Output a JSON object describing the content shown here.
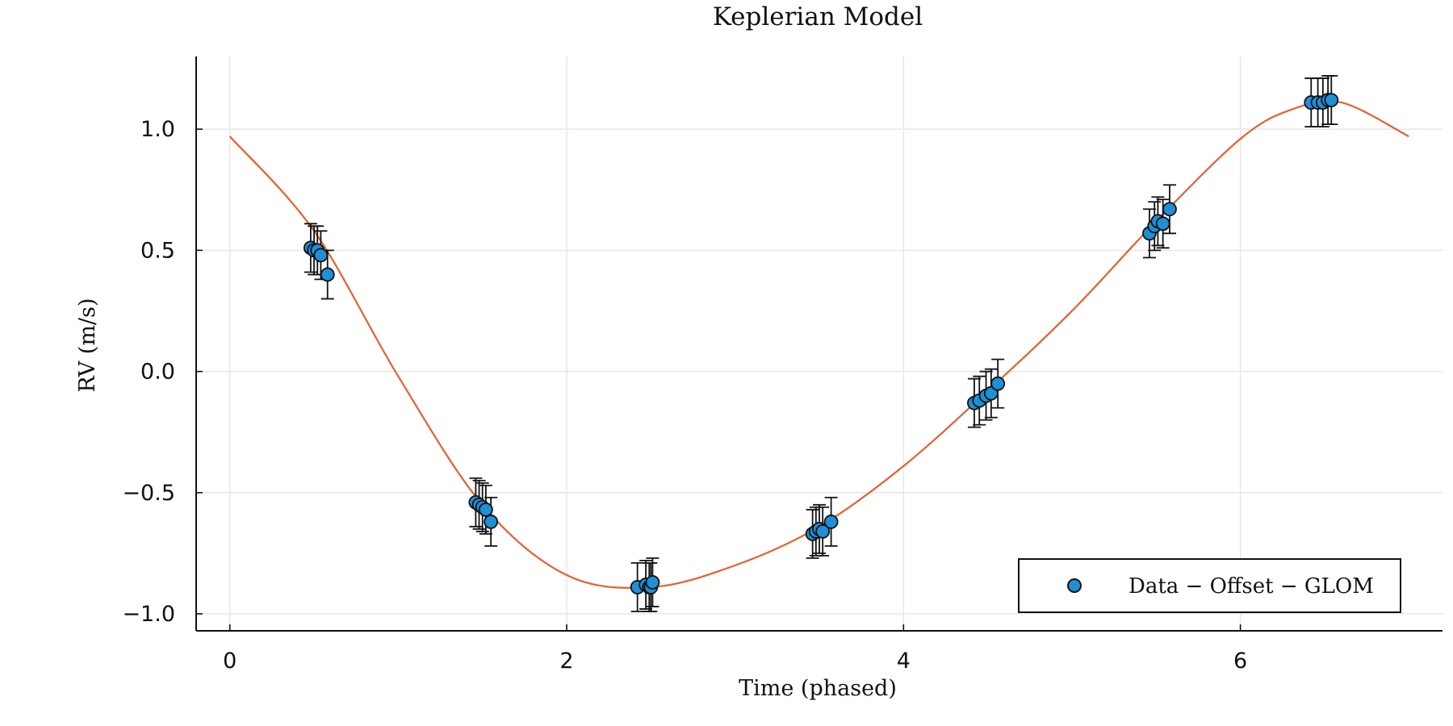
{
  "chart_data": {
    "type": "scatter",
    "title": "Keplerian Model",
    "xlabel": "Time (phased)",
    "ylabel": "RV (m/s)",
    "xlim": [
      -0.2,
      7.2
    ],
    "ylim": [
      -1.07,
      1.3
    ],
    "xticks": [
      0,
      2,
      4,
      6
    ],
    "yticks": [
      -1.0,
      -0.5,
      0.0,
      0.5,
      1.0
    ],
    "xtick_labels": [
      "0",
      "2",
      "4",
      "6"
    ],
    "ytick_labels": [
      "−1.0",
      "−0.5",
      "0.0",
      "0.5",
      "1.0"
    ],
    "grid": true,
    "legend_position": "bottom-right",
    "series": [
      {
        "name": "Data − Offset − GLOM",
        "kind": "scatter_with_error_bars",
        "color": "#1f8fd6",
        "error": 0.1,
        "points": [
          {
            "x": 0.48,
            "y": 0.51
          },
          {
            "x": 0.5,
            "y": 0.5
          },
          {
            "x": 0.52,
            "y": 0.5
          },
          {
            "x": 0.54,
            "y": 0.48
          },
          {
            "x": 0.58,
            "y": 0.4
          },
          {
            "x": 1.46,
            "y": -0.54
          },
          {
            "x": 1.48,
            "y": -0.55
          },
          {
            "x": 1.5,
            "y": -0.56
          },
          {
            "x": 1.52,
            "y": -0.57
          },
          {
            "x": 1.55,
            "y": -0.62
          },
          {
            "x": 2.42,
            "y": -0.89
          },
          {
            "x": 2.47,
            "y": -0.88
          },
          {
            "x": 2.49,
            "y": -0.89
          },
          {
            "x": 2.5,
            "y": -0.89
          },
          {
            "x": 2.51,
            "y": -0.87
          },
          {
            "x": 3.46,
            "y": -0.67
          },
          {
            "x": 3.48,
            "y": -0.66
          },
          {
            "x": 3.5,
            "y": -0.65
          },
          {
            "x": 3.52,
            "y": -0.66
          },
          {
            "x": 3.57,
            "y": -0.62
          },
          {
            "x": 4.42,
            "y": -0.13
          },
          {
            "x": 4.45,
            "y": -0.12
          },
          {
            "x": 4.49,
            "y": -0.1
          },
          {
            "x": 4.52,
            "y": -0.09
          },
          {
            "x": 4.56,
            "y": -0.05
          },
          {
            "x": 5.46,
            "y": 0.57
          },
          {
            "x": 5.49,
            "y": 0.6
          },
          {
            "x": 5.51,
            "y": 0.62
          },
          {
            "x": 5.54,
            "y": 0.61
          },
          {
            "x": 5.58,
            "y": 0.67
          },
          {
            "x": 6.42,
            "y": 1.11
          },
          {
            "x": 6.46,
            "y": 1.11
          },
          {
            "x": 6.49,
            "y": 1.11
          },
          {
            "x": 6.52,
            "y": 1.12
          },
          {
            "x": 6.54,
            "y": 1.12
          }
        ]
      },
      {
        "name": "",
        "kind": "line",
        "color": "#e4602f",
        "x": [
          0.0,
          0.5,
          1.0,
          1.5,
          2.0,
          2.5,
          3.0,
          3.5,
          4.0,
          4.5,
          5.0,
          5.5,
          6.0,
          6.3,
          6.6,
          7.0
        ],
        "y": [
          0.97,
          0.58,
          -0.02,
          -0.55,
          -0.84,
          -0.89,
          -0.8,
          -0.64,
          -0.39,
          -0.08,
          0.25,
          0.62,
          0.96,
          1.08,
          1.11,
          0.97
        ]
      }
    ]
  }
}
